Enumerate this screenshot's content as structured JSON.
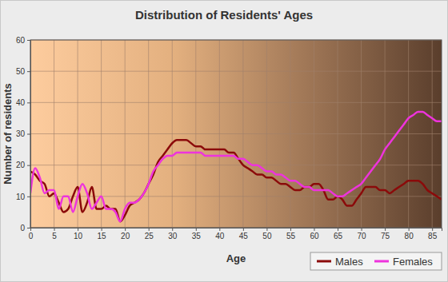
{
  "chart_data": {
    "type": "line",
    "title": "Distribution of Residents' Ages",
    "x_label": "Age",
    "y_label": "Number of residents",
    "x": [
      0,
      1,
      2,
      3,
      4,
      5,
      6,
      7,
      8,
      9,
      10,
      11,
      12,
      13,
      14,
      15,
      16,
      17,
      18,
      19,
      20,
      21,
      22,
      23,
      24,
      25,
      26,
      27,
      28,
      29,
      30,
      31,
      32,
      33,
      34,
      35,
      36,
      37,
      38,
      39,
      40,
      41,
      42,
      43,
      44,
      45,
      46,
      47,
      48,
      49,
      50,
      51,
      52,
      53,
      54,
      55,
      56,
      57,
      58,
      59,
      60,
      61,
      62,
      63,
      64,
      65,
      66,
      67,
      68,
      69,
      70,
      71,
      72,
      73,
      74,
      75,
      76,
      77,
      78,
      79,
      80,
      81,
      82,
      83,
      84,
      85,
      86,
      87
    ],
    "series": [
      {
        "name": "Males",
        "color": "#8b0a0a",
        "values": [
          18,
          17,
          15,
          14,
          10,
          11,
          8,
          5,
          6,
          10,
          13,
          5,
          8,
          13,
          6,
          6,
          7,
          6,
          6,
          2,
          4,
          7,
          8,
          9,
          11,
          14,
          17,
          21,
          23,
          25,
          27,
          28,
          28,
          28,
          27,
          26,
          26,
          25,
          25,
          25,
          25,
          25,
          24,
          24,
          22,
          20,
          19,
          18,
          17,
          17,
          16,
          16,
          15,
          14,
          14,
          13,
          12,
          12,
          13,
          13,
          14,
          14,
          12,
          9,
          9,
          10,
          9,
          7,
          7,
          9,
          11,
          13,
          13,
          13,
          12,
          12,
          11,
          12,
          13,
          14,
          15,
          15,
          15,
          14,
          12,
          11,
          10,
          9
        ]
      },
      {
        "name": "Females",
        "color": "#ee33dd",
        "values": [
          11,
          19,
          16,
          11,
          12,
          12,
          6,
          10,
          10,
          5,
          10,
          14,
          11,
          6,
          8,
          10,
          6,
          6,
          5,
          2,
          6,
          8,
          8,
          9,
          11,
          14,
          18,
          20,
          22,
          23,
          23,
          24,
          24,
          24,
          24,
          24,
          24,
          23,
          23,
          23,
          23,
          23,
          23,
          23,
          22,
          22,
          21,
          20,
          20,
          19,
          18,
          18,
          17,
          17,
          16,
          15,
          15,
          14,
          13,
          13,
          12,
          12,
          12,
          12,
          11,
          10,
          10,
          11,
          12,
          13,
          14,
          16,
          18,
          20,
          22,
          25,
          27,
          29,
          31,
          33,
          35,
          36,
          37,
          37,
          36,
          35,
          34,
          34
        ]
      }
    ],
    "xlim": [
      0,
      87
    ],
    "xticks": [
      0,
      5,
      10,
      15,
      20,
      25,
      30,
      35,
      40,
      45,
      50,
      55,
      60,
      65,
      70,
      75,
      80,
      85
    ],
    "ylim": [
      0,
      60
    ],
    "yticks": [
      0,
      10,
      20,
      30,
      40,
      50,
      60
    ],
    "grid": true,
    "legend": "bottom"
  }
}
